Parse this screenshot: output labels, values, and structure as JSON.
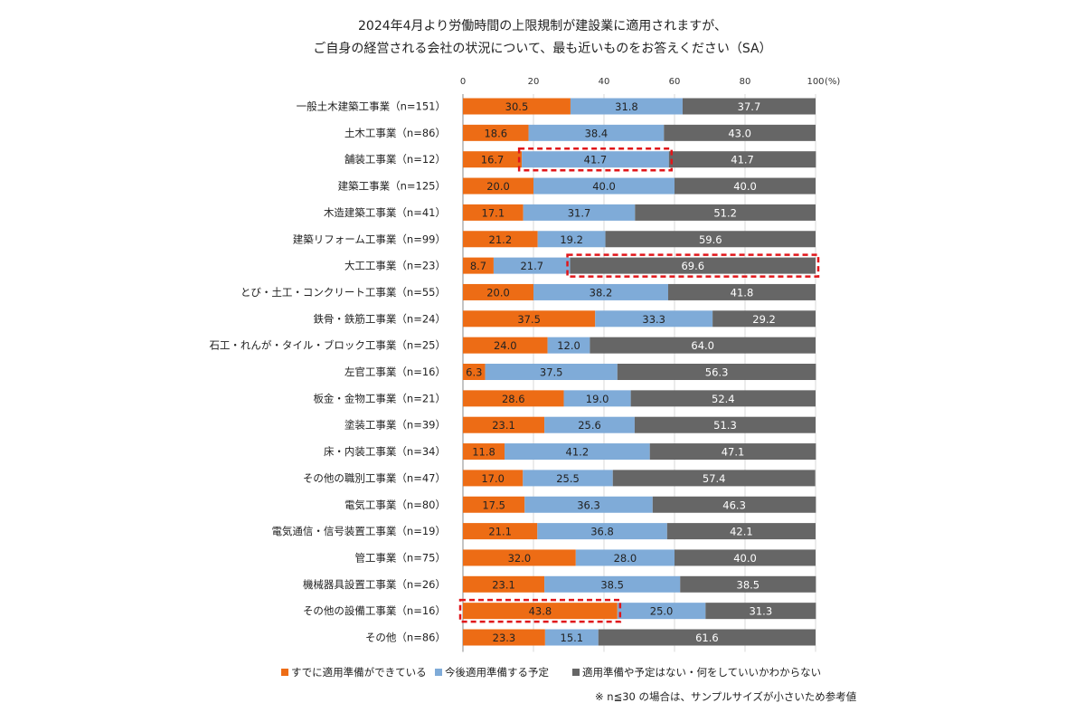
{
  "chart_data": {
    "type": "bar",
    "orientation": "horizontal",
    "stacked": true,
    "title_lines": [
      "2024年4月より労働時間の上限規制が建設業に適用されますが、",
      "ご自身の経営される会社の状況について、最も近いものをお答えください（SA）"
    ],
    "x_ticks": [
      "0",
      "20",
      "40",
      "60",
      "80",
      "100"
    ],
    "x_unit": "(%)",
    "xlim": [
      0,
      100
    ],
    "categories": [
      "一般土木建築工事業（n=151）",
      "土木工事業（n=86）",
      "舗装工事業（n=12）",
      "建築工事業（n=125）",
      "木造建築工事業（n=41）",
      "建築リフォーム工事業（n=99）",
      "大工工事業（n=23）",
      "とび・土工・コンクリート工事業（n=55）",
      "鉄骨・鉄筋工事業（n=24）",
      "石工・れんが・タイル・ブロック工事業（n=25）",
      "左官工事業（n=16）",
      "板金・金物工事業（n=21）",
      "塗装工事業（n=39）",
      "床・内装工事業（n=34）",
      "その他の職別工事業（n=47）",
      "電気工事業（n=80）",
      "電気通信・信号装置工事業（n=19）",
      "管工事業（n=75）",
      "機械器具設置工事業（n=26）",
      "その他の設備工事業（n=16）",
      "その他（n=86）"
    ],
    "series": [
      {
        "name": "すでに適用準備ができている",
        "color": "#ed6c15",
        "label_color": "#222222",
        "values": [
          30.5,
          18.6,
          16.7,
          20.0,
          17.1,
          21.2,
          8.7,
          20.0,
          37.5,
          24.0,
          6.3,
          28.6,
          23.1,
          11.8,
          17.0,
          17.5,
          21.1,
          32.0,
          23.1,
          43.8,
          23.3
        ],
        "labels": [
          "30.5",
          "18.6",
          "16.7",
          "20.0",
          "17.1",
          "21.2",
          "8.7",
          "20.0",
          "37.5",
          "24.0",
          "6.3",
          "28.6",
          "23.1",
          "11.8",
          "17.0",
          "17.5",
          "21.1",
          "32.0",
          "23.1",
          "43.8",
          "23.3"
        ]
      },
      {
        "name": "今後適用準備する予定",
        "color": "#7fabd8",
        "label_color": "#222222",
        "values": [
          31.8,
          38.4,
          41.7,
          40.0,
          31.7,
          19.2,
          21.7,
          38.2,
          33.3,
          12.0,
          37.5,
          19.0,
          25.6,
          41.2,
          25.5,
          36.3,
          36.8,
          28.0,
          38.5,
          25.0,
          15.1
        ],
        "labels": [
          "31.8",
          "38.4",
          "41.7",
          "40.0",
          "31.7",
          "19.2",
          "21.7",
          "38.2",
          "33.3",
          "12.0",
          "37.5",
          "19.0",
          "25.6",
          "41.2",
          "25.5",
          "36.3",
          "36.8",
          "28.0",
          "38.5",
          "25.0",
          "15.1"
        ]
      },
      {
        "name": "適用準備や予定はない・何をしていいかわからない",
        "color": "#666666",
        "label_color": "#ffffff",
        "values": [
          37.7,
          43.0,
          41.7,
          40.0,
          51.2,
          59.6,
          69.6,
          41.8,
          29.2,
          64.0,
          56.3,
          52.4,
          51.3,
          47.1,
          57.4,
          46.3,
          42.1,
          40.0,
          38.5,
          31.3,
          61.6
        ],
        "labels": [
          "37.7",
          "43.0",
          "41.7",
          "40.0",
          "51.2",
          "59.6",
          "69.6",
          "41.8",
          "29.2",
          "64.0",
          "56.3",
          "52.4",
          "51.3",
          "47.1",
          "57.4",
          "46.3",
          "42.1",
          "40.0",
          "38.5",
          "31.3",
          "61.6"
        ]
      }
    ],
    "highlights": [
      {
        "category_index": 2,
        "series_index": 1,
        "color": "#e0161a"
      },
      {
        "category_index": 6,
        "series_index": 2,
        "color": "#e0161a"
      },
      {
        "category_index": 19,
        "series_index": 0,
        "color": "#e0161a"
      }
    ],
    "grid": true,
    "legend_position": "bottom",
    "note": "※ n≦30 の場合は、サンプルサイズが小さいため参考値"
  }
}
